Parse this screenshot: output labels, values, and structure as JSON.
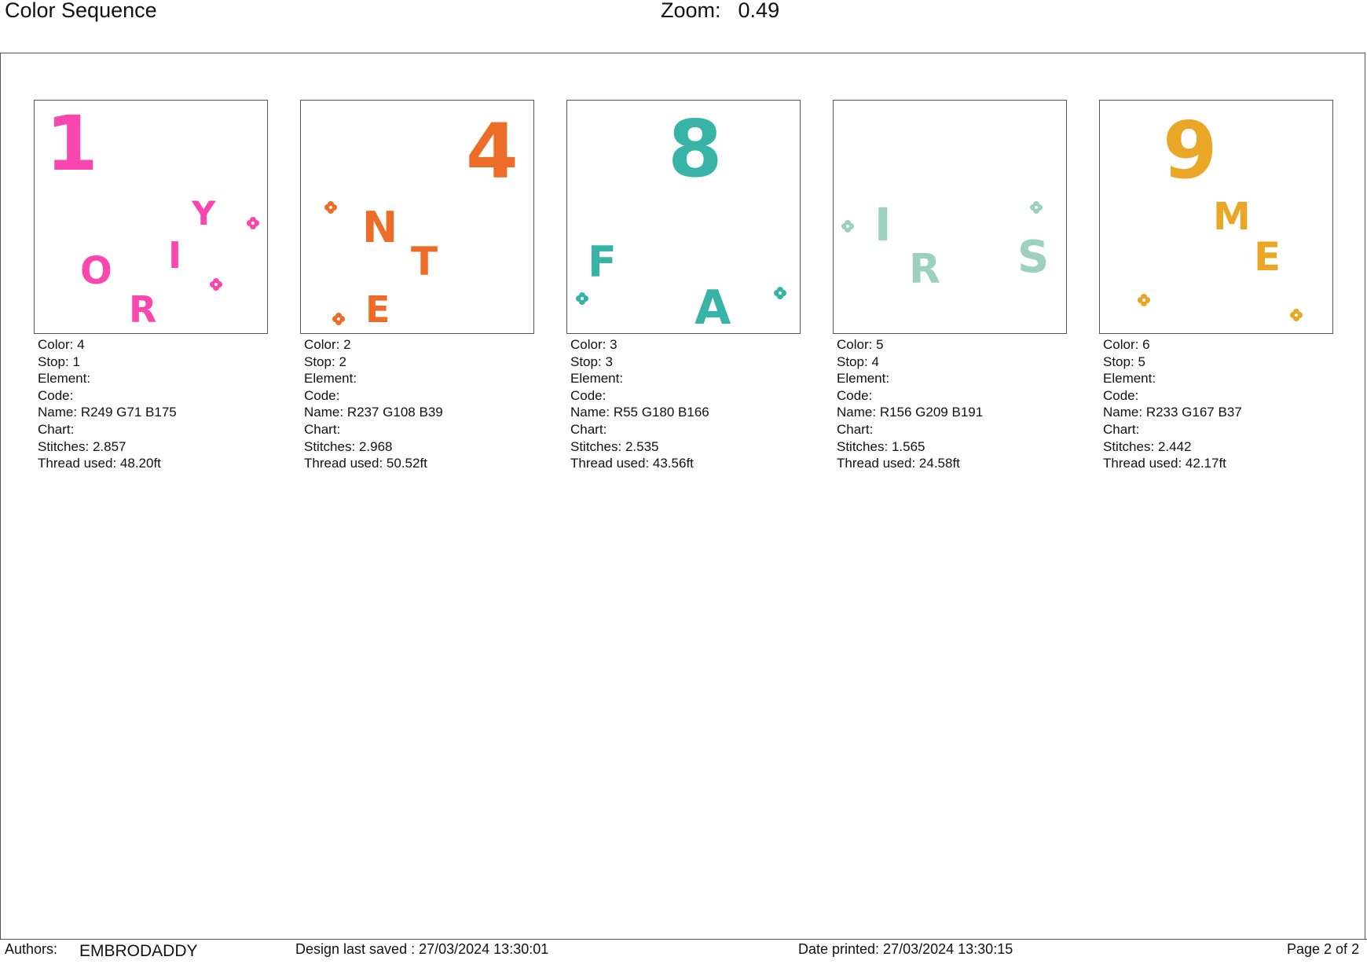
{
  "header": {
    "title": "Color Sequence",
    "zoom_label": "Zoom:",
    "zoom_value": "0.49"
  },
  "labels": {
    "color": "Color:",
    "stop": "Stop:",
    "element": "Element:",
    "code": "Code:",
    "name": "Name:",
    "chart": "Chart:",
    "stitches": "Stitches:",
    "thread": "Thread used:"
  },
  "cards": [
    {
      "color": "4",
      "stop": "1",
      "element": "",
      "code": "",
      "name": "R249 G71 B175",
      "chart": "",
      "stitches": "2.857",
      "thread": "48.20ft",
      "hex": "#F947AF",
      "glyphs": [
        "1",
        "Y",
        "O",
        "I",
        "R"
      ]
    },
    {
      "color": "2",
      "stop": "2",
      "element": "",
      "code": "",
      "name": "R237 G108 B39",
      "chart": "",
      "stitches": "2.968",
      "thread": "50.52ft",
      "hex": "#ED6C27",
      "glyphs": [
        "4",
        "N",
        "T",
        "E"
      ]
    },
    {
      "color": "3",
      "stop": "3",
      "element": "",
      "code": "",
      "name": "R55 G180 B166",
      "chart": "",
      "stitches": "2.535",
      "thread": "43.56ft",
      "hex": "#37B4A6",
      "glyphs": [
        "8",
        "F",
        "A"
      ]
    },
    {
      "color": "5",
      "stop": "4",
      "element": "",
      "code": "",
      "name": "R156 G209 B191",
      "chart": "",
      "stitches": "1.565",
      "thread": "24.58ft",
      "hex": "#9CD1BF",
      "glyphs": [
        "I",
        "R",
        "S"
      ]
    },
    {
      "color": "6",
      "stop": "5",
      "element": "",
      "code": "",
      "name": "R233 G167 B37",
      "chart": "",
      "stitches": "2.442",
      "thread": "42.17ft",
      "hex": "#E9A725",
      "glyphs": [
        "9",
        "M",
        "E"
      ]
    }
  ],
  "footer": {
    "authors_label": "Authors:",
    "authors_value": "EMBRODADDY",
    "saved": "Design last saved : 27/03/2024 13:30:01",
    "printed": "Date printed: 27/03/2024 13:30:15",
    "page": "Page 2 of 2"
  }
}
